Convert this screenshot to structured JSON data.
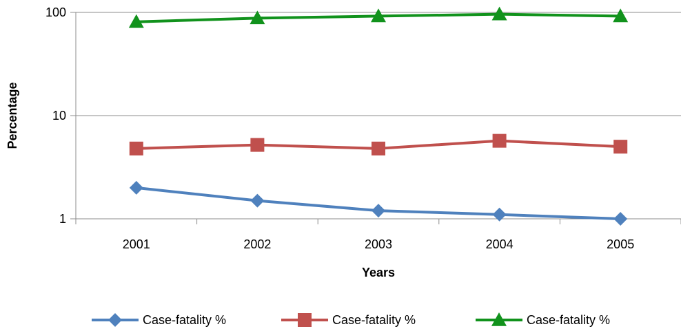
{
  "chart_data": {
    "type": "line",
    "categories": [
      "2001",
      "2002",
      "2003",
      "2004",
      "2005"
    ],
    "y_scale": "log",
    "ylim": [
      1,
      100
    ],
    "y_ticks": [
      {
        "value": 1,
        "label": "1"
      },
      {
        "value": 10,
        "label": "10"
      },
      {
        "value": 100,
        "label": "100"
      }
    ],
    "xlabel": "Years",
    "ylabel": "Percentage",
    "grid": "horizontal",
    "legend_position": "bottom",
    "series": [
      {
        "name": "Case-fatality %",
        "color": "#4F81BD",
        "marker": "diamond",
        "values": [
          2.0,
          1.5,
          1.2,
          1.1,
          1.0
        ]
      },
      {
        "name": "Case-fatality %",
        "color": "#C0504D",
        "marker": "square",
        "values": [
          4.8,
          5.2,
          4.8,
          5.7,
          5.0
        ]
      },
      {
        "name": "Case-fatality %",
        "color": "#11921C",
        "marker": "triangle",
        "values": [
          81,
          88,
          92,
          96,
          92
        ]
      }
    ]
  }
}
